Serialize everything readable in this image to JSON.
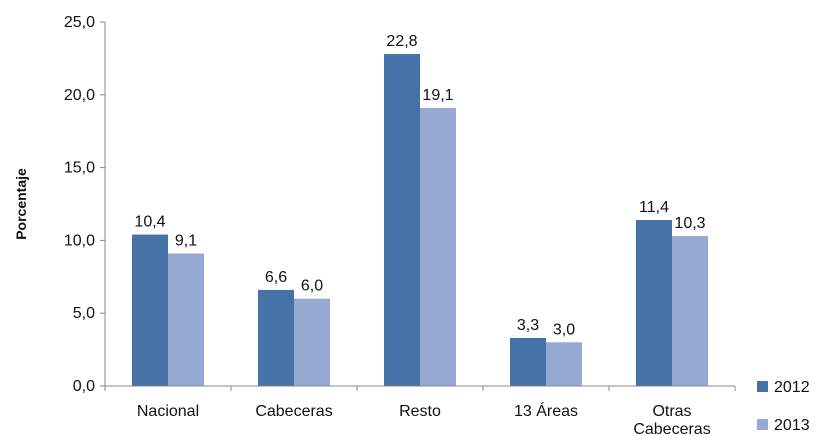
{
  "chart_data": {
    "type": "bar",
    "categories": [
      "Nacional",
      "Cabeceras",
      "Resto",
      "13 Áreas",
      "Otras Cabeceras"
    ],
    "series": [
      {
        "name": "2012",
        "values": [
          10.4,
          6.6,
          22.8,
          3.3,
          11.4
        ],
        "labels": [
          "10,4",
          "6,6",
          "22,8",
          "3,3",
          "11,4"
        ],
        "color": "#4572a7"
      },
      {
        "name": "2013",
        "values": [
          9.1,
          6.0,
          19.1,
          3.0,
          10.3
        ],
        "labels": [
          "9,1",
          "6,0",
          "19,1",
          "3,0",
          "10,3"
        ],
        "color": "#95a9d3"
      }
    ],
    "ylabel": "Porcentaje",
    "xlabel": "",
    "ylim": [
      0,
      25
    ],
    "yticks": [
      0,
      5,
      10,
      15,
      20,
      25
    ],
    "ytick_labels": [
      "0,0",
      "5,0",
      "10,0",
      "15,0",
      "20,0",
      "25,0"
    ],
    "legend_position": "bottom-right",
    "grid": false
  }
}
